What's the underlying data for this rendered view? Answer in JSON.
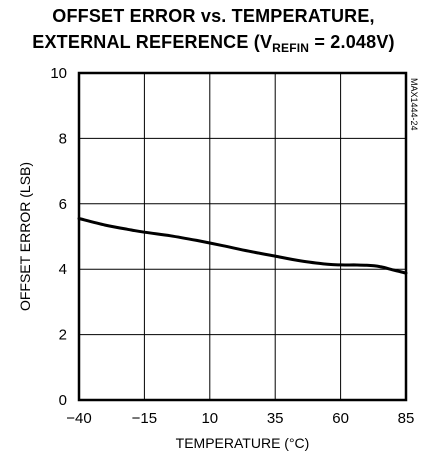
{
  "chart_data": {
    "type": "line",
    "title_line1": "OFFSET ERROR vs. TEMPERATURE,",
    "title_line2_prefix": "EXTERNAL REFERENCE (V",
    "title_line2_sub": "REFIN",
    "title_line2_suffix": " = 2.048V)",
    "xlabel": "TEMPERATURE (°C)",
    "ylabel": "OFFSET ERROR (LSB)",
    "figure_id": "MAX1444-24",
    "xlim": [
      -40,
      85
    ],
    "ylim": [
      0,
      10
    ],
    "x_ticks": [
      -40,
      -15,
      10,
      35,
      60,
      85
    ],
    "y_ticks": [
      0,
      2,
      4,
      6,
      8,
      10
    ],
    "grid": true,
    "series": [
      {
        "color": "#000000",
        "x": [
          -40,
          -30,
          -20,
          -15,
          -5,
          5,
          15,
          25,
          35,
          45,
          55,
          60,
          65,
          70,
          75,
          80,
          85
        ],
        "y": [
          5.55,
          5.35,
          5.2,
          5.13,
          5.02,
          4.88,
          4.72,
          4.55,
          4.4,
          4.25,
          4.15,
          4.13,
          4.13,
          4.12,
          4.08,
          3.98,
          3.88
        ]
      }
    ]
  }
}
